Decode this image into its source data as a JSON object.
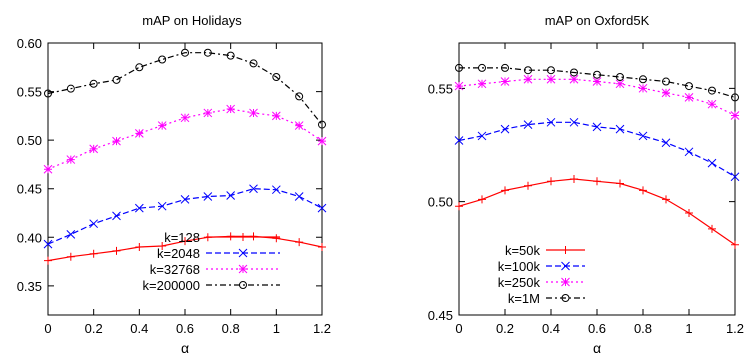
{
  "chart_data": [
    {
      "type": "line",
      "title": "mAP on Holidays",
      "xlabel": "α",
      "ylabel": "",
      "x": [
        0,
        0.1,
        0.2,
        0.3,
        0.4,
        0.5,
        0.6,
        0.7,
        0.8,
        0.9,
        1.0,
        1.1,
        1.2
      ],
      "xlim": [
        0,
        1.2
      ],
      "ylim": [
        0.32,
        0.6
      ],
      "xticks": [
        "0",
        "0.2",
        "0.4",
        "0.6",
        "0.8",
        "1",
        "1.2"
      ],
      "yticks": [
        "0.35",
        "0.40",
        "0.45",
        "0.50",
        "0.55",
        "0.60"
      ],
      "legend_position": "bottom-right",
      "series": [
        {
          "name": "k=128",
          "color": "#ff0000",
          "dash": "solid",
          "marker": "plus",
          "values": [
            0.376,
            0.38,
            0.383,
            0.386,
            0.39,
            0.391,
            0.396,
            0.4,
            0.401,
            0.401,
            0.399,
            0.395,
            0.39
          ]
        },
        {
          "name": "k=2048",
          "color": "#0000ff",
          "dash": "dashed",
          "marker": "cross",
          "values": [
            0.393,
            0.403,
            0.414,
            0.422,
            0.43,
            0.432,
            0.439,
            0.442,
            0.443,
            0.45,
            0.449,
            0.442,
            0.43
          ]
        },
        {
          "name": "k=32768",
          "color": "#ff00ff",
          "dash": "dotted",
          "marker": "star",
          "values": [
            0.47,
            0.48,
            0.491,
            0.499,
            0.507,
            0.515,
            0.523,
            0.528,
            0.532,
            0.528,
            0.525,
            0.515,
            0.499
          ]
        },
        {
          "name": "k=200000",
          "color": "#000000",
          "dash": "dashdot",
          "marker": "circle",
          "values": [
            0.548,
            0.553,
            0.558,
            0.562,
            0.575,
            0.583,
            0.59,
            0.59,
            0.587,
            0.579,
            0.565,
            0.545,
            0.516
          ]
        }
      ]
    },
    {
      "type": "line",
      "title": "mAP on Oxford5K",
      "xlabel": "α",
      "ylabel": "",
      "x": [
        0,
        0.1,
        0.2,
        0.3,
        0.4,
        0.5,
        0.6,
        0.7,
        0.8,
        0.9,
        1.0,
        1.1,
        1.2
      ],
      "xlim": [
        0,
        1.2
      ],
      "ylim": [
        0.45,
        0.57
      ],
      "xticks": [
        "0",
        "0.2",
        "0.4",
        "0.6",
        "0.8",
        "1",
        "1.2"
      ],
      "yticks": [
        "0.45",
        "0.50",
        "0.55"
      ],
      "legend_position": "bottom-left",
      "series": [
        {
          "name": "k=50k",
          "color": "#ff0000",
          "dash": "solid",
          "marker": "plus",
          "values": [
            0.498,
            0.501,
            0.505,
            0.507,
            0.509,
            0.51,
            0.509,
            0.508,
            0.505,
            0.501,
            0.495,
            0.488,
            0.481
          ]
        },
        {
          "name": "k=100k",
          "color": "#0000ff",
          "dash": "dashed",
          "marker": "cross",
          "values": [
            0.527,
            0.529,
            0.532,
            0.534,
            0.535,
            0.535,
            0.533,
            0.532,
            0.529,
            0.526,
            0.522,
            0.517,
            0.511
          ]
        },
        {
          "name": "k=250k",
          "color": "#ff00ff",
          "dash": "dotted",
          "marker": "star",
          "values": [
            0.551,
            0.552,
            0.553,
            0.554,
            0.554,
            0.554,
            0.553,
            0.552,
            0.55,
            0.548,
            0.546,
            0.543,
            0.538
          ]
        },
        {
          "name": "k=1M",
          "color": "#000000",
          "dash": "dashdot",
          "marker": "circle",
          "values": [
            0.559,
            0.559,
            0.559,
            0.558,
            0.558,
            0.557,
            0.556,
            0.555,
            0.554,
            0.553,
            0.551,
            0.549,
            0.546
          ]
        }
      ]
    }
  ]
}
